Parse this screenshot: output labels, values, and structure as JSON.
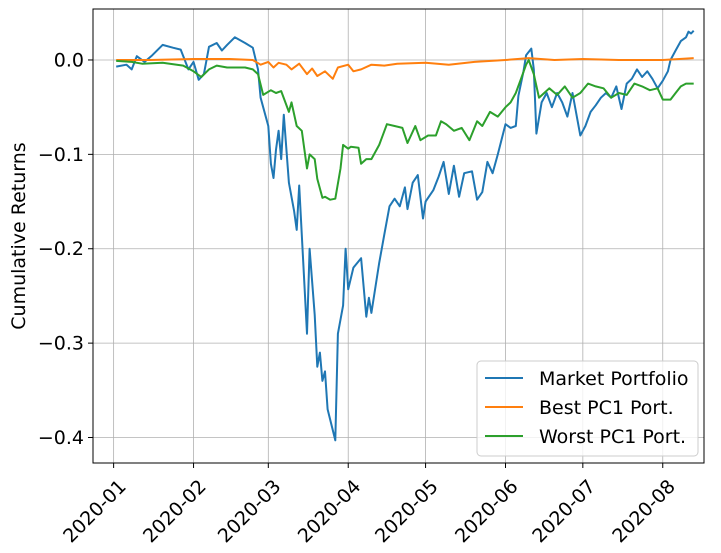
{
  "chart_data": {
    "type": "line",
    "title": "",
    "xlabel": "",
    "ylabel": "Cumulative Returns",
    "x_ticks": [
      "2020-01",
      "2020-02",
      "2020-03",
      "2020-04",
      "2020-05",
      "2020-06",
      "2020-07",
      "2020-08"
    ],
    "y_ticks": [
      0.0,
      -0.1,
      -0.2,
      -0.3,
      -0.4
    ],
    "y_tick_labels": [
      "0.0",
      "−0.1",
      "−0.2",
      "−0.3",
      "−0.4"
    ],
    "xlim": [
      "2019-12-24",
      "2020-08-17"
    ],
    "ylim": [
      -0.427,
      0.054
    ],
    "grid": true,
    "legend_position": "lower right",
    "series": [
      {
        "name": "Market Portfolio",
        "color": "#1f77b4",
        "points": [
          [
            "2020-01-02",
            -0.007
          ],
          [
            "2020-01-06",
            -0.005
          ],
          [
            "2020-01-08",
            -0.01
          ],
          [
            "2020-01-10",
            0.004
          ],
          [
            "2020-01-13",
            -0.002
          ],
          [
            "2020-01-16",
            0.005
          ],
          [
            "2020-01-20",
            0.016
          ],
          [
            "2020-01-24",
            0.013
          ],
          [
            "2020-01-27",
            0.011
          ],
          [
            "2020-01-30",
            -0.01
          ],
          [
            "2020-02-01",
            -0.002
          ],
          [
            "2020-02-03",
            -0.021
          ],
          [
            "2020-02-05",
            -0.015
          ],
          [
            "2020-02-07",
            0.014
          ],
          [
            "2020-02-10",
            0.018
          ],
          [
            "2020-02-12",
            0.01
          ],
          [
            "2020-02-14",
            0.016
          ],
          [
            "2020-02-17",
            0.024
          ],
          [
            "2020-02-21",
            0.018
          ],
          [
            "2020-02-24",
            0.013
          ],
          [
            "2020-02-26",
            -0.01
          ],
          [
            "2020-02-27",
            -0.04
          ],
          [
            "2020-03-01",
            -0.07
          ],
          [
            "2020-03-02",
            -0.11
          ],
          [
            "2020-03-03",
            -0.125
          ],
          [
            "2020-03-04",
            -0.095
          ],
          [
            "2020-03-05",
            -0.075
          ],
          [
            "2020-03-06",
            -0.105
          ],
          [
            "2020-03-07",
            -0.058
          ],
          [
            "2020-03-09",
            -0.13
          ],
          [
            "2020-03-11",
            -0.16
          ],
          [
            "2020-03-12",
            -0.18
          ],
          [
            "2020-03-13",
            -0.133
          ],
          [
            "2020-03-16",
            -0.29
          ],
          [
            "2020-03-17",
            -0.2
          ],
          [
            "2020-03-19",
            -0.27
          ],
          [
            "2020-03-20",
            -0.325
          ],
          [
            "2020-03-21",
            -0.31
          ],
          [
            "2020-03-22",
            -0.34
          ],
          [
            "2020-03-23",
            -0.33
          ],
          [
            "2020-03-24",
            -0.37
          ],
          [
            "2020-03-27",
            -0.403
          ],
          [
            "2020-03-28",
            -0.29
          ],
          [
            "2020-03-30",
            -0.26
          ],
          [
            "2020-03-31",
            -0.2
          ],
          [
            "2020-04-01",
            -0.243
          ],
          [
            "2020-04-03",
            -0.22
          ],
          [
            "2020-04-06",
            -0.21
          ],
          [
            "2020-04-08",
            -0.272
          ],
          [
            "2020-04-09",
            -0.252
          ],
          [
            "2020-04-10",
            -0.268
          ],
          [
            "2020-04-13",
            -0.215
          ],
          [
            "2020-04-15",
            -0.185
          ],
          [
            "2020-04-17",
            -0.155
          ],
          [
            "2020-04-19",
            -0.147
          ],
          [
            "2020-04-21",
            -0.155
          ],
          [
            "2020-04-23",
            -0.135
          ],
          [
            "2020-04-24",
            -0.158
          ],
          [
            "2020-04-26",
            -0.13
          ],
          [
            "2020-04-28",
            -0.122
          ],
          [
            "2020-04-30",
            -0.168
          ],
          [
            "2020-05-01",
            -0.15
          ],
          [
            "2020-05-04",
            -0.138
          ],
          [
            "2020-05-06",
            -0.124
          ],
          [
            "2020-05-08",
            -0.108
          ],
          [
            "2020-05-10",
            -0.142
          ],
          [
            "2020-05-12",
            -0.112
          ],
          [
            "2020-05-14",
            -0.145
          ],
          [
            "2020-05-16",
            -0.12
          ],
          [
            "2020-05-19",
            -0.118
          ],
          [
            "2020-05-21",
            -0.148
          ],
          [
            "2020-05-23",
            -0.14
          ],
          [
            "2020-05-25",
            -0.108
          ],
          [
            "2020-05-27",
            -0.12
          ],
          [
            "2020-05-29",
            -0.1
          ],
          [
            "2020-06-01",
            -0.068
          ],
          [
            "2020-06-03",
            -0.072
          ],
          [
            "2020-06-05",
            -0.07
          ],
          [
            "2020-06-06",
            -0.038
          ],
          [
            "2020-06-08",
            -0.012
          ],
          [
            "2020-06-09",
            0.005
          ],
          [
            "2020-06-11",
            0.012
          ],
          [
            "2020-06-12",
            -0.01
          ],
          [
            "2020-06-13",
            -0.078
          ],
          [
            "2020-06-15",
            -0.045
          ],
          [
            "2020-06-17",
            -0.035
          ],
          [
            "2020-06-19",
            -0.05
          ],
          [
            "2020-06-21",
            -0.035
          ],
          [
            "2020-06-23",
            -0.045
          ],
          [
            "2020-06-25",
            -0.06
          ],
          [
            "2020-06-27",
            -0.035
          ],
          [
            "2020-06-29",
            -0.065
          ],
          [
            "2020-06-30",
            -0.08
          ],
          [
            "2020-07-02",
            -0.07
          ],
          [
            "2020-07-04",
            -0.055
          ],
          [
            "2020-07-06",
            -0.048
          ],
          [
            "2020-07-08",
            -0.04
          ],
          [
            "2020-07-10",
            -0.035
          ],
          [
            "2020-07-12",
            -0.04
          ],
          [
            "2020-07-14",
            -0.028
          ],
          [
            "2020-07-16",
            -0.052
          ],
          [
            "2020-07-18",
            -0.025
          ],
          [
            "2020-07-20",
            -0.02
          ],
          [
            "2020-07-22",
            -0.01
          ],
          [
            "2020-07-24",
            -0.018
          ],
          [
            "2020-07-26",
            -0.012
          ],
          [
            "2020-07-28",
            -0.02
          ],
          [
            "2020-07-30",
            -0.03
          ],
          [
            "2020-08-01",
            -0.022
          ],
          [
            "2020-08-03",
            -0.012
          ],
          [
            "2020-08-04",
            0.0
          ],
          [
            "2020-08-06",
            0.01
          ],
          [
            "2020-08-08",
            0.02
          ],
          [
            "2020-08-10",
            0.024
          ],
          [
            "2020-08-11",
            0.03
          ],
          [
            "2020-08-12",
            0.028
          ],
          [
            "2020-08-13",
            0.031
          ]
        ]
      },
      {
        "name": "Best PC1 Port.",
        "color": "#ff7f0e",
        "points": [
          [
            "2020-01-02",
            0.0
          ],
          [
            "2020-01-15",
            0.0
          ],
          [
            "2020-02-01",
            0.001
          ],
          [
            "2020-02-15",
            0.001
          ],
          [
            "2020-02-24",
            0.0
          ],
          [
            "2020-02-27",
            -0.005
          ],
          [
            "2020-03-01",
            -0.002
          ],
          [
            "2020-03-03",
            -0.008
          ],
          [
            "2020-03-05",
            -0.003
          ],
          [
            "2020-03-08",
            -0.005
          ],
          [
            "2020-03-10",
            -0.01
          ],
          [
            "2020-03-13",
            -0.004
          ],
          [
            "2020-03-16",
            -0.015
          ],
          [
            "2020-03-18",
            -0.009
          ],
          [
            "2020-03-20",
            -0.017
          ],
          [
            "2020-03-23",
            -0.012
          ],
          [
            "2020-03-26",
            -0.02
          ],
          [
            "2020-03-28",
            -0.008
          ],
          [
            "2020-04-01",
            -0.005
          ],
          [
            "2020-04-03",
            -0.012
          ],
          [
            "2020-04-06",
            -0.01
          ],
          [
            "2020-04-10",
            -0.005
          ],
          [
            "2020-04-15",
            -0.006
          ],
          [
            "2020-04-20",
            -0.004
          ],
          [
            "2020-05-01",
            -0.003
          ],
          [
            "2020-05-10",
            -0.005
          ],
          [
            "2020-05-20",
            -0.002
          ],
          [
            "2020-06-01",
            0.0
          ],
          [
            "2020-06-10",
            0.002
          ],
          [
            "2020-06-20",
            0.0
          ],
          [
            "2020-07-01",
            0.001
          ],
          [
            "2020-07-15",
            0.0
          ],
          [
            "2020-08-01",
            0.0
          ],
          [
            "2020-08-13",
            0.002
          ]
        ]
      },
      {
        "name": "Worst PC1 Port.",
        "color": "#2ca02c",
        "points": [
          [
            "2020-01-02",
            -0.001
          ],
          [
            "2020-01-08",
            -0.002
          ],
          [
            "2020-01-12",
            -0.004
          ],
          [
            "2020-01-20",
            -0.003
          ],
          [
            "2020-01-28",
            -0.006
          ],
          [
            "2020-02-01",
            -0.012
          ],
          [
            "2020-02-04",
            -0.018
          ],
          [
            "2020-02-07",
            -0.01
          ],
          [
            "2020-02-10",
            -0.006
          ],
          [
            "2020-02-14",
            -0.008
          ],
          [
            "2020-02-21",
            -0.008
          ],
          [
            "2020-02-24",
            -0.01
          ],
          [
            "2020-02-26",
            -0.015
          ],
          [
            "2020-02-28",
            -0.037
          ],
          [
            "2020-03-02",
            -0.032
          ],
          [
            "2020-03-04",
            -0.035
          ],
          [
            "2020-03-06",
            -0.033
          ],
          [
            "2020-03-09",
            -0.055
          ],
          [
            "2020-03-10",
            -0.045
          ],
          [
            "2020-03-12",
            -0.07
          ],
          [
            "2020-03-14",
            -0.075
          ],
          [
            "2020-03-16",
            -0.115
          ],
          [
            "2020-03-17",
            -0.1
          ],
          [
            "2020-03-19",
            -0.105
          ],
          [
            "2020-03-20",
            -0.126
          ],
          [
            "2020-03-22",
            -0.146
          ],
          [
            "2020-03-23",
            -0.145
          ],
          [
            "2020-03-25",
            -0.148
          ],
          [
            "2020-03-27",
            -0.147
          ],
          [
            "2020-03-29",
            -0.115
          ],
          [
            "2020-03-30",
            -0.09
          ],
          [
            "2020-04-01",
            -0.094
          ],
          [
            "2020-04-02",
            -0.092
          ],
          [
            "2020-04-05",
            -0.093
          ],
          [
            "2020-04-06",
            -0.11
          ],
          [
            "2020-04-08",
            -0.105
          ],
          [
            "2020-04-10",
            -0.105
          ],
          [
            "2020-04-13",
            -0.09
          ],
          [
            "2020-04-16",
            -0.068
          ],
          [
            "2020-04-19",
            -0.07
          ],
          [
            "2020-04-22",
            -0.072
          ],
          [
            "2020-04-24",
            -0.088
          ],
          [
            "2020-04-27",
            -0.07
          ],
          [
            "2020-04-29",
            -0.085
          ],
          [
            "2020-05-02",
            -0.08
          ],
          [
            "2020-05-05",
            -0.08
          ],
          [
            "2020-05-07",
            -0.065
          ],
          [
            "2020-05-09",
            -0.068
          ],
          [
            "2020-05-12",
            -0.075
          ],
          [
            "2020-05-15",
            -0.072
          ],
          [
            "2020-05-18",
            -0.085
          ],
          [
            "2020-05-21",
            -0.065
          ],
          [
            "2020-05-23",
            -0.07
          ],
          [
            "2020-05-26",
            -0.055
          ],
          [
            "2020-05-29",
            -0.06
          ],
          [
            "2020-06-01",
            -0.05
          ],
          [
            "2020-06-03",
            -0.045
          ],
          [
            "2020-06-05",
            -0.035
          ],
          [
            "2020-06-07",
            -0.02
          ],
          [
            "2020-06-09",
            -0.005
          ],
          [
            "2020-06-10",
            0.0
          ],
          [
            "2020-06-12",
            -0.015
          ],
          [
            "2020-06-14",
            -0.04
          ],
          [
            "2020-06-16",
            -0.035
          ],
          [
            "2020-06-18",
            -0.03
          ],
          [
            "2020-06-21",
            -0.037
          ],
          [
            "2020-06-24",
            -0.028
          ],
          [
            "2020-06-27",
            -0.04
          ],
          [
            "2020-06-30",
            -0.035
          ],
          [
            "2020-07-03",
            -0.025
          ],
          [
            "2020-07-06",
            -0.028
          ],
          [
            "2020-07-09",
            -0.03
          ],
          [
            "2020-07-12",
            -0.04
          ],
          [
            "2020-07-15",
            -0.035
          ],
          [
            "2020-07-18",
            -0.037
          ],
          [
            "2020-07-21",
            -0.025
          ],
          [
            "2020-07-24",
            -0.028
          ],
          [
            "2020-07-27",
            -0.032
          ],
          [
            "2020-07-30",
            -0.03
          ],
          [
            "2020-08-01",
            -0.042
          ],
          [
            "2020-08-04",
            -0.042
          ],
          [
            "2020-08-06",
            -0.035
          ],
          [
            "2020-08-08",
            -0.028
          ],
          [
            "2020-08-10",
            -0.025
          ],
          [
            "2020-08-13",
            -0.025
          ]
        ]
      }
    ]
  }
}
